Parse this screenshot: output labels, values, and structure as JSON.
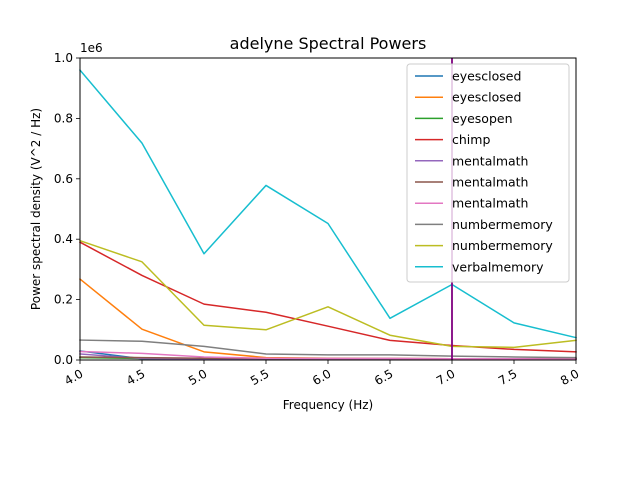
{
  "chart_data": {
    "type": "line",
    "title": "adelyne Spectral Powers",
    "xlabel": "Frequency (Hz)",
    "ylabel": "Power spectral density (V^2 / Hz)",
    "y_multiplier_label": "1e6",
    "xlim": [
      4.0,
      8.0
    ],
    "ylim": [
      0,
      1000000
    ],
    "x_ticks": [
      "4.0",
      "4.5",
      "5.0",
      "5.5",
      "6.0",
      "6.5",
      "7.0",
      "7.5",
      "8.0"
    ],
    "y_ticks": [
      "0.0",
      "0.2",
      "0.4",
      "0.6",
      "0.8",
      "1.0"
    ],
    "grid": false,
    "legend_position": "top-right",
    "x": [
      4.0,
      4.5,
      5.0,
      5.5,
      6.0,
      6.5,
      7.0,
      7.5,
      8.0
    ],
    "vertical_marker": {
      "x": 7.0,
      "color": "#800080"
    },
    "series": [
      {
        "name": "eyesclosed",
        "color": "#1f77b4",
        "values": [
          30000,
          4000,
          3000,
          2000,
          2000,
          2000,
          2000,
          2000,
          2000
        ]
      },
      {
        "name": "eyesclosed",
        "color": "#ff7f0e",
        "values": [
          268000,
          102000,
          27000,
          8000,
          6000,
          5000,
          4000,
          3000,
          3000
        ]
      },
      {
        "name": "eyesopen",
        "color": "#2ca02c",
        "values": [
          8000,
          5000,
          4000,
          3000,
          3000,
          3000,
          3000,
          3000,
          3000
        ]
      },
      {
        "name": "chimp",
        "color": "#d62728",
        "values": [
          390000,
          280000,
          185000,
          158000,
          112000,
          65000,
          48000,
          35000,
          27000
        ]
      },
      {
        "name": "mentalmath",
        "color": "#9467bd",
        "values": [
          20000,
          5000,
          3000,
          2000,
          2000,
          2000,
          2000,
          2000,
          2000
        ]
      },
      {
        "name": "mentalmath",
        "color": "#8c564b",
        "values": [
          10000,
          8000,
          6000,
          5000,
          5000,
          5000,
          4000,
          4000,
          4000
        ]
      },
      {
        "name": "mentalmath",
        "color": "#e377c2",
        "values": [
          28000,
          22000,
          10000,
          6000,
          5000,
          5000,
          4000,
          4000,
          3000
        ]
      },
      {
        "name": "numbermemory",
        "color": "#7f7f7f",
        "values": [
          66000,
          62000,
          45000,
          20000,
          17000,
          17000,
          13000,
          10000,
          8000
        ]
      },
      {
        "name": "numbermemory",
        "color": "#bcbd22",
        "values": [
          395000,
          325000,
          115000,
          100000,
          176000,
          82000,
          45000,
          42000,
          65000
        ]
      },
      {
        "name": "verbalmemory",
        "color": "#17becf",
        "values": [
          960000,
          718000,
          352000,
          578000,
          452000,
          138000,
          250000,
          123000,
          74000
        ]
      }
    ]
  }
}
